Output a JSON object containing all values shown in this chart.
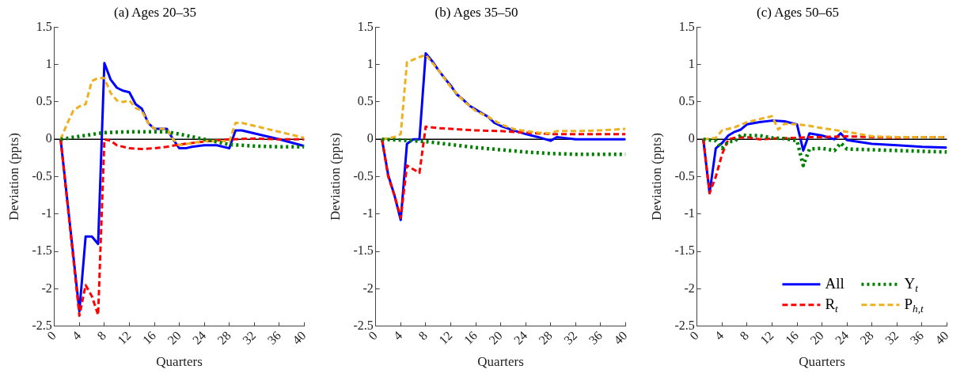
{
  "chart_data": [
    {
      "type": "line",
      "title": "(a) Ages 20–35",
      "xlabel": "Quarters",
      "ylabel": "Deviation (ppts)",
      "xlim": [
        0,
        40
      ],
      "xticks": [
        0,
        4,
        8,
        12,
        16,
        20,
        24,
        28,
        32,
        36,
        40
      ],
      "ylim": [
        -2.5,
        1.5
      ],
      "yticks": [
        -2.5,
        -2,
        -1.5,
        -1,
        -0.5,
        0,
        0.5,
        1,
        1.5
      ],
      "grid": false,
      "marker": "none",
      "legend": false,
      "ref_lines": [
        {
          "axis": "y",
          "value": 0,
          "color": "#000000"
        }
      ],
      "series": [
        {
          "color": "#0000ff",
          "line_style": "solid",
          "x": [
            1,
            4,
            5,
            6,
            7,
            8,
            9,
            10,
            11,
            12,
            13,
            14,
            15,
            16,
            17,
            18,
            19,
            20,
            21,
            22,
            24,
            26,
            28,
            29,
            30,
            32,
            36,
            40
          ],
          "values": [
            0,
            -2.3,
            -1.3,
            -1.3,
            -1.4,
            1.02,
            0.8,
            0.69,
            0.65,
            0.63,
            0.47,
            0.41,
            0.22,
            0.14,
            0.14,
            0.14,
            0,
            -0.12,
            -0.12,
            -0.1,
            -0.08,
            -0.08,
            -0.12,
            0.12,
            0.12,
            0.08,
            0,
            -0.09
          ]
        },
        {
          "color": "#ff0000",
          "line_style": "dashed",
          "x": [
            1,
            4,
            5,
            6,
            7,
            8,
            9,
            10,
            12,
            14,
            16,
            18,
            20,
            24,
            28,
            32,
            36,
            40
          ],
          "values": [
            0,
            -2.36,
            -1.95,
            -2.1,
            -2.35,
            0,
            -0.02,
            -0.08,
            -0.12,
            -0.13,
            -0.12,
            -0.1,
            -0.07,
            -0.03,
            0,
            0.01,
            0,
            0
          ]
        },
        {
          "color": "#008000",
          "line_style": "dotted",
          "x": [
            1,
            4,
            8,
            12,
            16,
            18,
            20,
            24,
            28,
            32,
            36,
            40
          ],
          "values": [
            0,
            0.04,
            0.09,
            0.1,
            0.1,
            0.1,
            0.07,
            0,
            -0.07,
            -0.09,
            -0.1,
            -0.1
          ]
        },
        {
          "color": "#edb120",
          "line_style": "dashed",
          "x": [
            1,
            2,
            3,
            4,
            5,
            6,
            7,
            8,
            9,
            10,
            11,
            12,
            13,
            14,
            15,
            16,
            17,
            18,
            19,
            20,
            22,
            24,
            26,
            28,
            29,
            30,
            32,
            36,
            40
          ],
          "values": [
            0,
            0.2,
            0.38,
            0.44,
            0.47,
            0.78,
            0.82,
            0.82,
            0.62,
            0.52,
            0.5,
            0.52,
            0.42,
            0.38,
            0.22,
            0.14,
            0.14,
            0.14,
            0,
            -0.08,
            -0.05,
            -0.02,
            -0.02,
            -0.03,
            0.22,
            0.22,
            0.18,
            0.1,
            0.02
          ]
        }
      ]
    },
    {
      "type": "line",
      "title": "(b) Ages 35–50",
      "xlabel": "Quarters",
      "ylabel": "Deviation (ppts)",
      "xlim": [
        0,
        40
      ],
      "xticks": [
        0,
        4,
        8,
        12,
        16,
        20,
        24,
        28,
        32,
        36,
        40
      ],
      "ylim": [
        -2.5,
        1.5
      ],
      "yticks": [
        -2.5,
        -2,
        -1.5,
        -1,
        -0.5,
        0,
        0.5,
        1,
        1.5
      ],
      "grid": false,
      "marker": "none",
      "legend": false,
      "ref_lines": [
        {
          "axis": "y",
          "value": 0,
          "color": "#000000"
        }
      ],
      "series": [
        {
          "color": "#0000ff",
          "line_style": "solid",
          "x": [
            1,
            2,
            3,
            4,
            5,
            6,
            7,
            8,
            9,
            10,
            11,
            12,
            13,
            14,
            15,
            16,
            17,
            18,
            19,
            20,
            22,
            24,
            26,
            28,
            29,
            30,
            32,
            36,
            40
          ],
          "values": [
            0,
            -0.48,
            -0.75,
            -1.08,
            -0.06,
            0,
            0,
            1.15,
            1.05,
            0.93,
            0.82,
            0.72,
            0.6,
            0.53,
            0.45,
            0.4,
            0.35,
            0.3,
            0.22,
            0.18,
            0.12,
            0.07,
            0.03,
            -0.02,
            0.03,
            0.02,
            0,
            0,
            0
          ]
        },
        {
          "color": "#ff0000",
          "line_style": "dashed",
          "x": [
            1,
            2,
            3,
            4,
            5,
            7,
            8,
            10,
            16,
            20,
            24,
            28,
            32,
            40
          ],
          "values": [
            0,
            -0.5,
            -0.75,
            -1.05,
            -0.35,
            -0.45,
            0.17,
            0.15,
            0.12,
            0.11,
            0.09,
            0.07,
            0.07,
            0.07
          ]
        },
        {
          "color": "#008000",
          "line_style": "dotted",
          "x": [
            1,
            4,
            8,
            12,
            16,
            20,
            24,
            28,
            32,
            36,
            40
          ],
          "values": [
            0,
            -0.01,
            -0.03,
            -0.07,
            -0.11,
            -0.14,
            -0.17,
            -0.19,
            -0.2,
            -0.2,
            -0.2
          ]
        },
        {
          "color": "#edb120",
          "line_style": "dashed",
          "x": [
            1,
            3,
            4,
            5,
            7,
            8,
            10,
            12,
            14,
            16,
            18,
            20,
            22,
            24,
            26,
            28,
            29,
            32,
            36,
            40
          ],
          "values": [
            0,
            0.03,
            0.07,
            1.03,
            1.1,
            1.13,
            0.93,
            0.7,
            0.52,
            0.38,
            0.3,
            0.2,
            0.14,
            0.11,
            0.09,
            0.08,
            0.11,
            0.11,
            0.12,
            0.14
          ]
        }
      ]
    },
    {
      "type": "line",
      "title": "(c) Ages 50–65",
      "xlabel": "Quarters",
      "ylabel": "Deviation (ppts)",
      "xlim": [
        0,
        40
      ],
      "xticks": [
        0,
        4,
        8,
        12,
        16,
        20,
        24,
        28,
        32,
        36,
        40
      ],
      "ylim": [
        -2.5,
        1.5
      ],
      "yticks": [
        -2.5,
        -2,
        -1.5,
        -1,
        -0.5,
        0,
        0.5,
        1,
        1.5
      ],
      "grid": false,
      "marker": "none",
      "legend": "bottom right",
      "ref_lines": [
        {
          "axis": "y",
          "value": 0,
          "color": "#000000"
        }
      ],
      "series": [
        {
          "name": "All",
          "color": "#0000ff",
          "line_style": "solid",
          "x": [
            1,
            2,
            3,
            4,
            5,
            6,
            7,
            8,
            10,
            12,
            14,
            16,
            17,
            18,
            20,
            22,
            23,
            24,
            28,
            32,
            36,
            40
          ],
          "values": [
            0,
            -0.72,
            -0.12,
            -0.05,
            0.05,
            0.1,
            0.13,
            0.2,
            0.23,
            0.25,
            0.24,
            0.2,
            -0.15,
            0.08,
            0.05,
            0,
            0.08,
            -0.01,
            -0.06,
            -0.08,
            -0.1,
            -0.11
          ]
        },
        {
          "name": "R$_{t}$",
          "color": "#ff0000",
          "line_style": "dashed",
          "x": [
            1,
            2,
            3,
            4,
            5,
            6,
            8,
            10,
            12,
            16,
            18,
            20,
            24,
            28,
            32,
            36,
            40
          ],
          "values": [
            0,
            -0.72,
            -0.5,
            -0.2,
            0,
            0.02,
            0.03,
            0,
            0.01,
            0.02,
            0.03,
            0.03,
            0.04,
            0.03,
            0.02,
            0.03,
            0.03
          ]
        },
        {
          "name": "Y$_{t}$",
          "color": "#008000",
          "line_style": "dotted",
          "x": [
            1,
            3,
            4,
            5,
            6,
            7,
            8,
            10,
            12,
            14,
            16,
            17,
            18,
            20,
            22,
            23,
            24,
            28,
            32,
            36,
            40
          ],
          "values": [
            0,
            -0.02,
            -0.12,
            -0.03,
            -0.03,
            0.06,
            0.05,
            0.05,
            0.02,
            0.01,
            -0.02,
            -0.35,
            -0.13,
            -0.12,
            -0.15,
            -0.05,
            -0.13,
            -0.14,
            -0.15,
            -0.16,
            -0.17
          ]
        },
        {
          "name": "P$_{h,t}$",
          "color": "#edb120",
          "line_style": "dashed",
          "x": [
            1,
            3,
            4,
            6,
            8,
            10,
            12,
            13,
            14,
            16,
            18,
            20,
            24,
            28,
            32,
            36,
            40
          ],
          "values": [
            0,
            0.02,
            0.12,
            0.16,
            0.23,
            0.27,
            0.31,
            0.13,
            0.21,
            0.2,
            0.18,
            0.15,
            0.1,
            0.04,
            0.03,
            0.03,
            0.03
          ]
        }
      ]
    }
  ]
}
